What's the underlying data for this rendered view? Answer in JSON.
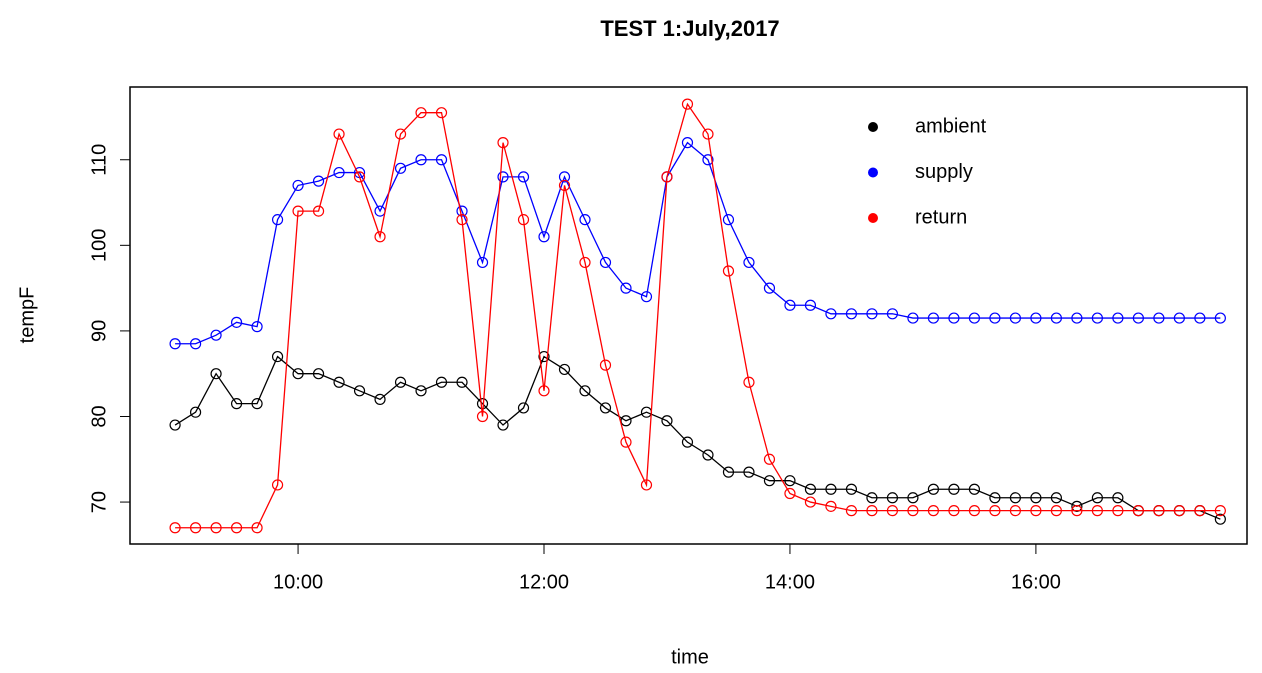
{
  "chart_data": {
    "type": "line",
    "title": "TEST 1:July,2017",
    "x_label": "time",
    "y_label": "tempF",
    "x": [
      "09:00",
      "09:10",
      "09:20",
      "09:30",
      "09:40",
      "09:50",
      "10:00",
      "10:10",
      "10:20",
      "10:30",
      "10:40",
      "10:50",
      "11:00",
      "11:10",
      "11:20",
      "11:30",
      "11:40",
      "11:50",
      "12:00",
      "12:10",
      "12:20",
      "12:30",
      "12:40",
      "12:50",
      "13:00",
      "13:10",
      "13:20",
      "13:30",
      "13:40",
      "13:50",
      "14:00",
      "14:10",
      "14:20",
      "14:30",
      "14:40",
      "14:50",
      "15:00",
      "15:10",
      "15:20",
      "15:30",
      "15:40",
      "15:50",
      "16:00",
      "16:10",
      "16:20",
      "16:30",
      "16:40",
      "16:50",
      "17:00",
      "17:10",
      "17:20",
      "17:30"
    ],
    "series": [
      {
        "name": "ambient",
        "color": "#000000",
        "values": [
          79,
          80.5,
          85,
          81.5,
          81.5,
          87,
          85,
          85,
          84,
          83,
          82,
          84,
          83,
          84,
          84,
          81.5,
          79,
          81,
          87,
          85.5,
          83,
          81,
          79.5,
          80.5,
          79.5,
          77,
          75.5,
          73.5,
          73.5,
          72.5,
          72.5,
          71.5,
          71.5,
          71.5,
          70.5,
          70.5,
          70.5,
          71.5,
          71.5,
          71.5,
          70.5,
          70.5,
          70.5,
          70.5,
          69.5,
          70.5,
          70.5,
          69,
          69,
          69,
          69,
          68
        ]
      },
      {
        "name": "supply",
        "color": "#0000ff",
        "values": [
          88.5,
          88.5,
          89.5,
          91,
          90.5,
          103,
          107,
          107.5,
          108.5,
          108.5,
          104,
          109,
          110,
          110,
          104,
          98,
          108,
          108,
          101,
          108,
          103,
          98,
          95,
          94,
          108,
          112,
          110,
          103,
          98,
          95,
          93,
          93,
          92,
          92,
          92,
          92,
          91.5,
          91.5,
          91.5,
          91.5,
          91.5,
          91.5,
          91.5,
          91.5,
          91.5,
          91.5,
          91.5,
          91.5,
          91.5,
          91.5,
          91.5,
          91.5
        ]
      },
      {
        "name": "return",
        "color": "#ff0000",
        "values": [
          67,
          67,
          67,
          67,
          67,
          72,
          104,
          104,
          113,
          108,
          101,
          113,
          115.5,
          115.5,
          103,
          80,
          112,
          103,
          83,
          107,
          98,
          86,
          77,
          72,
          108,
          116.5,
          113,
          97,
          84,
          75,
          71,
          70,
          69.5,
          69,
          69,
          69,
          69,
          69,
          69,
          69,
          69,
          69,
          69,
          69,
          69,
          69,
          69,
          69,
          69,
          69,
          69,
          69
        ]
      }
    ],
    "xlim": [
      "08:38",
      "17:43"
    ],
    "xticks": [
      "10:00",
      "12:00",
      "14:00",
      "16:00"
    ],
    "ylim": [
      65.1,
      118.5
    ],
    "yticks": [
      70,
      80,
      90,
      100,
      110
    ],
    "legend": "top-right"
  }
}
